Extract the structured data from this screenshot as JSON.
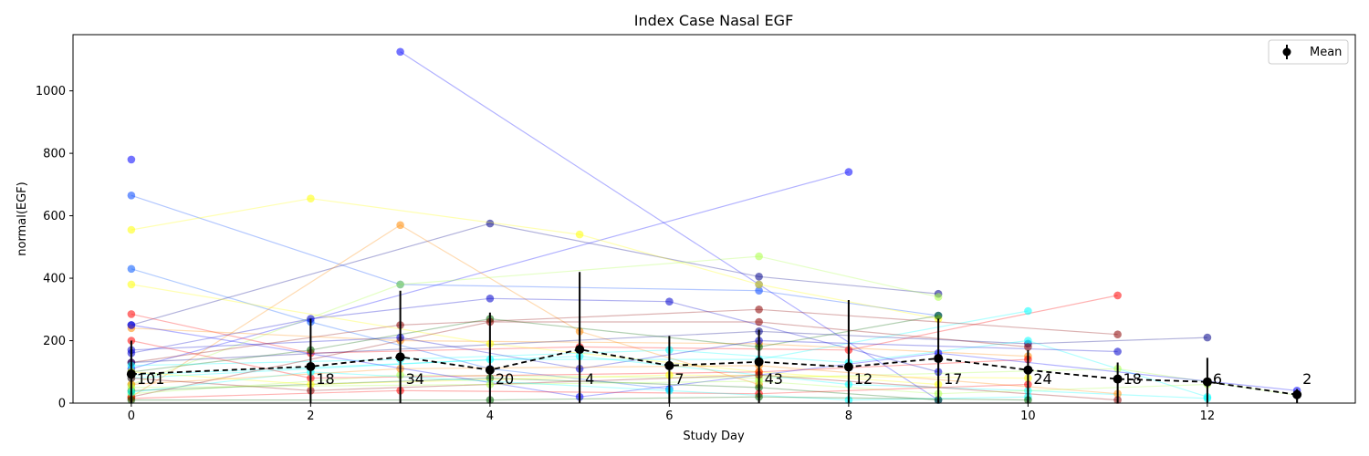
{
  "chart_data": {
    "type": "line",
    "title": "Index Case Nasal EGF",
    "xlabel": "Study Day",
    "ylabel": "normal(EGF)",
    "xlim": [
      -0.65,
      13.65
    ],
    "ylim": [
      0,
      1180
    ],
    "xticks": [
      0,
      2,
      4,
      6,
      8,
      10,
      12
    ],
    "yticks": [
      0,
      200,
      400,
      600,
      800,
      1000
    ],
    "grid": false,
    "legend": {
      "position": "top-right",
      "entries": [
        "Mean"
      ]
    },
    "subject_series": [
      {
        "color": "#0000ff",
        "points": [
          [
            3,
            1125
          ],
          [
            7,
            380
          ],
          [
            9,
            10
          ]
        ]
      },
      {
        "color": "#0000ff",
        "points": [
          [
            0,
            110
          ],
          [
            8,
            740
          ]
        ]
      },
      {
        "color": "#0044ff",
        "points": [
          [
            0,
            665
          ],
          [
            3,
            380
          ],
          [
            7,
            360
          ],
          [
            9,
            280
          ]
        ]
      },
      {
        "color": "#0055ff",
        "points": [
          [
            0,
            430
          ],
          [
            2,
            260
          ],
          [
            4,
            110
          ],
          [
            6,
            45
          ]
        ]
      },
      {
        "color": "#00008b",
        "points": [
          [
            0,
            250
          ],
          [
            4,
            575
          ],
          [
            7,
            405
          ],
          [
            9,
            350
          ]
        ]
      },
      {
        "color": "#ffff00",
        "points": [
          [
            0,
            555
          ],
          [
            2,
            655
          ],
          [
            5,
            540
          ],
          [
            7,
            380
          ],
          [
            9,
            270
          ]
        ]
      },
      {
        "color": "#ff8800",
        "points": [
          [
            0,
            20
          ],
          [
            3,
            570
          ],
          [
            5,
            230
          ],
          [
            7,
            60
          ]
        ]
      },
      {
        "color": "#aaff44",
        "points": [
          [
            0,
            60
          ],
          [
            3,
            380
          ],
          [
            7,
            470
          ],
          [
            9,
            340
          ]
        ]
      },
      {
        "color": "#ff0000",
        "points": [
          [
            0,
            285
          ],
          [
            2,
            160
          ],
          [
            5,
            180
          ],
          [
            8,
            170
          ],
          [
            11,
            345
          ]
        ]
      },
      {
        "color": "#00ffff",
        "points": [
          [
            0,
            80
          ],
          [
            4,
            140
          ],
          [
            7,
            140
          ],
          [
            10,
            295
          ]
        ]
      },
      {
        "color": "#0000cc",
        "points": [
          [
            0,
            160
          ],
          [
            2,
            270
          ],
          [
            4,
            335
          ],
          [
            6,
            325
          ],
          [
            9,
            100
          ]
        ]
      },
      {
        "color": "#8b0000",
        "points": [
          [
            0,
            130
          ],
          [
            3,
            250
          ],
          [
            7,
            300
          ],
          [
            11,
            220
          ]
        ]
      },
      {
        "color": "#000088",
        "points": [
          [
            0,
            130
          ],
          [
            7,
            230
          ],
          [
            10,
            190
          ],
          [
            12,
            210
          ]
        ]
      },
      {
        "color": "#ff8800",
        "points": [
          [
            0,
            240
          ],
          [
            3,
            200
          ],
          [
            7,
            190
          ],
          [
            10,
            150
          ]
        ]
      },
      {
        "color": "#006400",
        "points": [
          [
            0,
            100
          ],
          [
            2,
            170
          ],
          [
            4,
            270
          ],
          [
            7,
            180
          ],
          [
            9,
            280
          ]
        ]
      },
      {
        "color": "#00ffff",
        "points": [
          [
            0,
            120
          ],
          [
            3,
            140
          ],
          [
            6,
            170
          ],
          [
            8,
            130
          ],
          [
            10,
            200
          ],
          [
            12,
            20
          ]
        ]
      },
      {
        "color": "#ffff00",
        "points": [
          [
            0,
            380
          ],
          [
            4,
            190
          ],
          [
            7,
            100
          ],
          [
            9,
            60
          ]
        ]
      },
      {
        "color": "#0000ff",
        "points": [
          [
            0,
            780
          ]
        ]
      },
      {
        "color": "#0000cc",
        "points": [
          [
            0,
            170
          ],
          [
            3,
            210
          ],
          [
            5,
            110
          ],
          [
            7,
            200
          ],
          [
            11,
            165
          ]
        ]
      },
      {
        "color": "#8b0000",
        "points": [
          [
            0,
            20
          ],
          [
            4,
            260
          ],
          [
            7,
            260
          ],
          [
            10,
            180
          ]
        ]
      },
      {
        "color": "#aaff44",
        "points": [
          [
            0,
            30
          ],
          [
            3,
            90
          ],
          [
            7,
            80
          ],
          [
            11,
            110
          ],
          [
            13,
            25
          ]
        ]
      },
      {
        "color": "#ff0000",
        "points": [
          [
            0,
            200
          ],
          [
            2,
            80
          ],
          [
            7,
            100
          ],
          [
            10,
            140
          ]
        ]
      },
      {
        "color": "#00ffff",
        "points": [
          [
            0,
            90
          ],
          [
            5,
            150
          ],
          [
            8,
            60
          ],
          [
            10,
            40
          ],
          [
            12,
            15
          ]
        ]
      },
      {
        "color": "#006400",
        "points": [
          [
            0,
            40
          ],
          [
            4,
            80
          ],
          [
            7,
            50
          ],
          [
            9,
            10
          ]
        ]
      },
      {
        "color": "#ff8800",
        "points": [
          [
            0,
            60
          ],
          [
            3,
            110
          ],
          [
            7,
            120
          ],
          [
            11,
            30
          ]
        ]
      },
      {
        "color": "#0000ff",
        "points": [
          [
            0,
            250
          ],
          [
            5,
            20
          ],
          [
            9,
            160
          ],
          [
            13,
            40
          ]
        ]
      },
      {
        "color": "#8b0000",
        "points": [
          [
            0,
            80
          ],
          [
            2,
            40
          ],
          [
            7,
            90
          ],
          [
            11,
            10
          ]
        ]
      },
      {
        "color": "#aaff44",
        "points": [
          [
            0,
            50
          ],
          [
            4,
            60
          ],
          [
            7,
            70
          ],
          [
            9,
            30
          ],
          [
            12,
            60
          ]
        ]
      },
      {
        "color": "#ffff00",
        "points": [
          [
            0,
            100
          ],
          [
            2,
            60
          ],
          [
            6,
            90
          ],
          [
            10,
            80
          ]
        ]
      },
      {
        "color": "#ff0000",
        "points": [
          [
            0,
            15
          ],
          [
            3,
            40
          ],
          [
            7,
            30
          ],
          [
            10,
            60
          ]
        ]
      },
      {
        "color": "#00ffff",
        "points": [
          [
            0,
            35
          ],
          [
            2,
            100
          ],
          [
            6,
            40
          ],
          [
            8,
            10
          ],
          [
            10,
            20
          ]
        ]
      },
      {
        "color": "#006400",
        "points": [
          [
            0,
            10
          ],
          [
            4,
            10
          ],
          [
            7,
            20
          ],
          [
            10,
            10
          ]
        ]
      }
    ],
    "mean_series": {
      "name": "Mean",
      "color": "#000000",
      "x": [
        0,
        2,
        3,
        4,
        5,
        6,
        7,
        8,
        9,
        10,
        11,
        12,
        13
      ],
      "y": [
        93,
        117,
        148,
        106,
        172,
        120,
        132,
        116,
        143,
        106,
        77,
        68,
        27
      ],
      "yerr_upper": [
        200,
        270,
        360,
        290,
        420,
        215,
        235,
        330,
        270,
        170,
        130,
        145,
        45
      ],
      "yerr_lower": [
        0,
        0,
        0,
        0,
        0,
        0,
        0,
        0,
        0,
        0,
        0,
        0,
        0
      ],
      "counts": [
        "101",
        "18",
        "34",
        "20",
        "4",
        "7",
        "43",
        "12",
        "17",
        "24",
        "18",
        "6",
        "2"
      ]
    }
  }
}
